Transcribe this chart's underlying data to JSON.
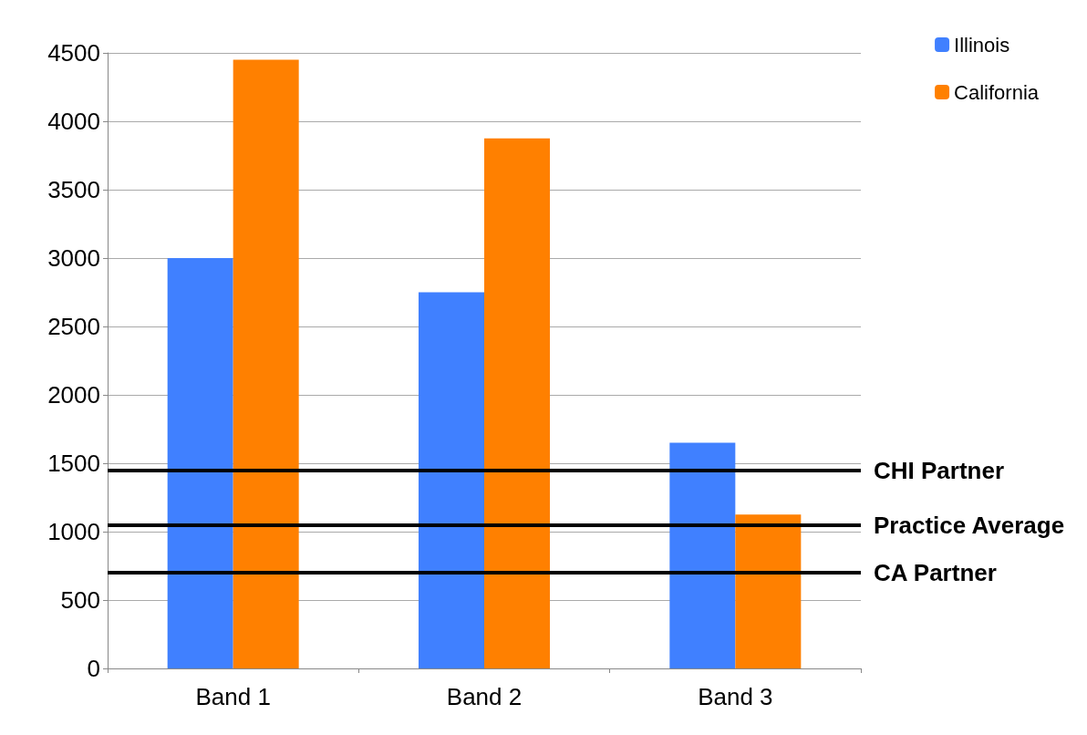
{
  "chart_data": {
    "type": "bar",
    "categories": [
      "Band 1",
      "Band 2",
      "Band 3"
    ],
    "series": [
      {
        "name": "Illinois",
        "color": "#4080ff",
        "values": [
          3000,
          2750,
          1650
        ]
      },
      {
        "name": "California",
        "color": "#ff8000",
        "values": [
          4450,
          3875,
          1125
        ]
      }
    ],
    "ylim": [
      0,
      4500
    ],
    "yticks": [
      0,
      500,
      1000,
      1500,
      2000,
      2500,
      3000,
      3500,
      4000,
      4500
    ],
    "grid": "y",
    "legend": "top right",
    "ref_lines": [
      {
        "axis": "y",
        "value": 1450,
        "label": "CHI Partner",
        "color": "#000000"
      },
      {
        "axis": "y",
        "value": 1050,
        "label": "Practice Average",
        "color": "#000000"
      },
      {
        "axis": "y",
        "value": 700,
        "label": "CA Partner",
        "color": "#000000"
      }
    ]
  }
}
